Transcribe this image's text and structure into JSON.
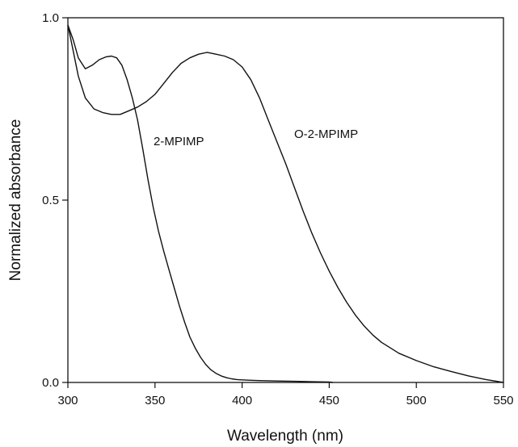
{
  "chart_data": {
    "type": "line",
    "title": "",
    "xlabel": "Wavelength (nm)",
    "ylabel": "Normalized absorbance",
    "xlim": [
      300,
      550
    ],
    "ylim": [
      0.0,
      1.0
    ],
    "xticks": [
      300,
      350,
      400,
      450,
      500,
      550
    ],
    "xtick_labels": [
      "300",
      "350",
      "400",
      "450",
      "500",
      "550"
    ],
    "yticks": [
      0.0,
      0.5,
      1.0
    ],
    "ytick_labels": [
      "0.0",
      "0.5",
      "1.0"
    ],
    "grid": false,
    "legend": "none",
    "line_color": "#111111",
    "series": [
      {
        "name": "2-MPIMP",
        "x": [
          300,
          303,
          306,
          310,
          314,
          318,
          322,
          325,
          328,
          331,
          334,
          337,
          340,
          343,
          346,
          349,
          352,
          355,
          358,
          361,
          364,
          367,
          370,
          373,
          376,
          379,
          382,
          385,
          388,
          391,
          394,
          397,
          400,
          405,
          410,
          420,
          430,
          440,
          450,
          452
        ],
        "y": [
          0.98,
          0.94,
          0.89,
          0.86,
          0.87,
          0.885,
          0.893,
          0.895,
          0.89,
          0.87,
          0.83,
          0.78,
          0.72,
          0.64,
          0.555,
          0.48,
          0.415,
          0.36,
          0.31,
          0.26,
          0.21,
          0.165,
          0.125,
          0.095,
          0.07,
          0.05,
          0.035,
          0.025,
          0.018,
          0.013,
          0.01,
          0.008,
          0.007,
          0.006,
          0.005,
          0.004,
          0.003,
          0.002,
          0.001,
          0.0
        ]
      },
      {
        "name": "O-2-MPIMP",
        "x": [
          300,
          303,
          306,
          310,
          315,
          320,
          325,
          330,
          335,
          340,
          345,
          350,
          355,
          360,
          365,
          370,
          375,
          380,
          385,
          390,
          395,
          400,
          405,
          410,
          415,
          420,
          425,
          430,
          435,
          440,
          445,
          450,
          455,
          460,
          465,
          470,
          475,
          480,
          490,
          500,
          510,
          520,
          530,
          540,
          550
        ],
        "y": [
          0.98,
          0.91,
          0.84,
          0.78,
          0.75,
          0.74,
          0.735,
          0.735,
          0.745,
          0.755,
          0.77,
          0.79,
          0.82,
          0.85,
          0.875,
          0.89,
          0.9,
          0.905,
          0.9,
          0.895,
          0.885,
          0.865,
          0.83,
          0.78,
          0.72,
          0.66,
          0.6,
          0.535,
          0.47,
          0.41,
          0.355,
          0.305,
          0.26,
          0.22,
          0.185,
          0.155,
          0.13,
          0.11,
          0.08,
          0.06,
          0.043,
          0.03,
          0.018,
          0.008,
          0.0
        ]
      }
    ],
    "annotations": [
      "2-MPIMP",
      "O-2-MPIMP"
    ]
  }
}
